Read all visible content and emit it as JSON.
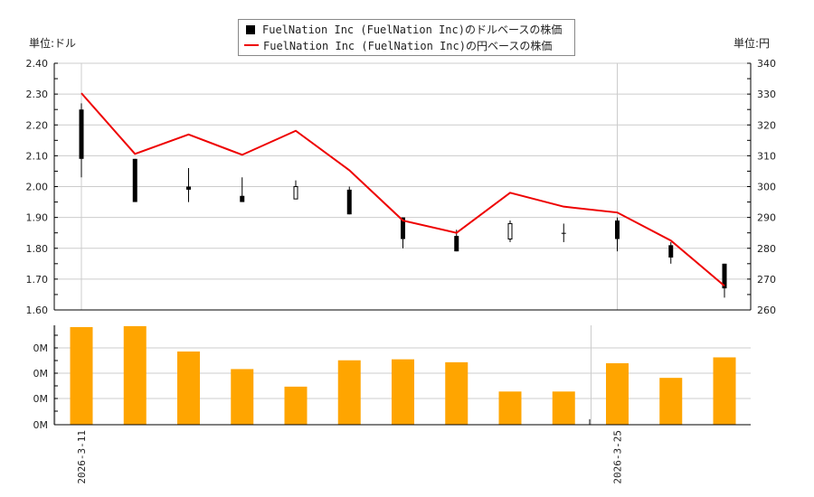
{
  "legend": {
    "dollar_series": "FuelNation Inc (FuelNation Inc)のドルベースの株価",
    "yen_series": "FuelNation Inc (FuelNation Inc)の円ベースの株価"
  },
  "units": {
    "left": "単位:ドル",
    "right": "単位:円"
  },
  "colors": {
    "candle": "#000000",
    "yen_line": "#ee0000",
    "volume_bar": "#ffa500",
    "grid": "#cccccc"
  },
  "chart_data": [
    {
      "type": "candlestick",
      "title": "",
      "xlabel": "",
      "ylabel": "単位:ドル",
      "y2label": "単位:円",
      "ylim": [
        1.6,
        2.4
      ],
      "y2lim": [
        260,
        340
      ],
      "yticks": [
        "2.40",
        "2.30",
        "2.20",
        "2.10",
        "2.00",
        "1.90",
        "1.80",
        "1.70",
        "1.60"
      ],
      "y2ticks": [
        "340",
        "330",
        "320",
        "310",
        "300",
        "290",
        "280",
        "270",
        "260"
      ],
      "x_labels": [
        {
          "index": 0,
          "label": "2026-3-11"
        },
        {
          "index": 10,
          "label": "2026-3-25"
        }
      ],
      "grid": true,
      "legend_position": "top-center",
      "series": [
        {
          "name": "FuelNation Inc (FuelNation Inc)のドルベースの株価",
          "ohlc": [
            {
              "open": 2.25,
              "high": 2.27,
              "low": 2.03,
              "close": 2.09
            },
            {
              "open": 2.09,
              "high": 2.09,
              "low": 1.95,
              "close": 1.95
            },
            {
              "open": 2.0,
              "high": 2.06,
              "low": 1.95,
              "close": 1.99
            },
            {
              "open": 1.97,
              "high": 2.03,
              "low": 1.95,
              "close": 1.95
            },
            {
              "open": 1.96,
              "high": 2.02,
              "low": 1.96,
              "close": 2.0
            },
            {
              "open": 1.99,
              "high": 2.0,
              "low": 1.91,
              "close": 1.91
            },
            {
              "open": 1.9,
              "high": 1.9,
              "low": 1.8,
              "close": 1.83
            },
            {
              "open": 1.84,
              "high": 1.86,
              "low": 1.79,
              "close": 1.79
            },
            {
              "open": 1.83,
              "high": 1.89,
              "low": 1.82,
              "close": 1.88
            },
            {
              "open": 1.85,
              "high": 1.88,
              "low": 1.82,
              "close": 1.85
            },
            {
              "open": 1.89,
              "high": 1.9,
              "low": 1.79,
              "close": 1.83
            },
            {
              "open": 1.81,
              "high": 1.82,
              "low": 1.75,
              "close": 1.77
            },
            {
              "open": 1.75,
              "high": 1.75,
              "low": 1.64,
              "close": 1.67
            }
          ]
        },
        {
          "name": "FuelNation Inc (FuelNation Inc)の円ベースの株価",
          "axis": "right",
          "values": [
            330.3,
            310.6,
            316.9,
            310.3,
            318.1,
            305.3,
            289.0,
            285.0,
            298.0,
            293.5,
            291.6,
            282.5,
            267.8
          ]
        }
      ]
    },
    {
      "type": "bar",
      "title": "",
      "ylabel": "",
      "yticks": [
        "0M",
        "0M",
        "0M",
        "0M"
      ],
      "series": [
        {
          "name": "volume",
          "relative_heights": [
            1.0,
            1.01,
            0.75,
            0.57,
            0.39,
            0.66,
            0.67,
            0.64,
            0.34,
            0.34,
            0.63,
            0.48,
            0.69
          ]
        }
      ]
    }
  ]
}
